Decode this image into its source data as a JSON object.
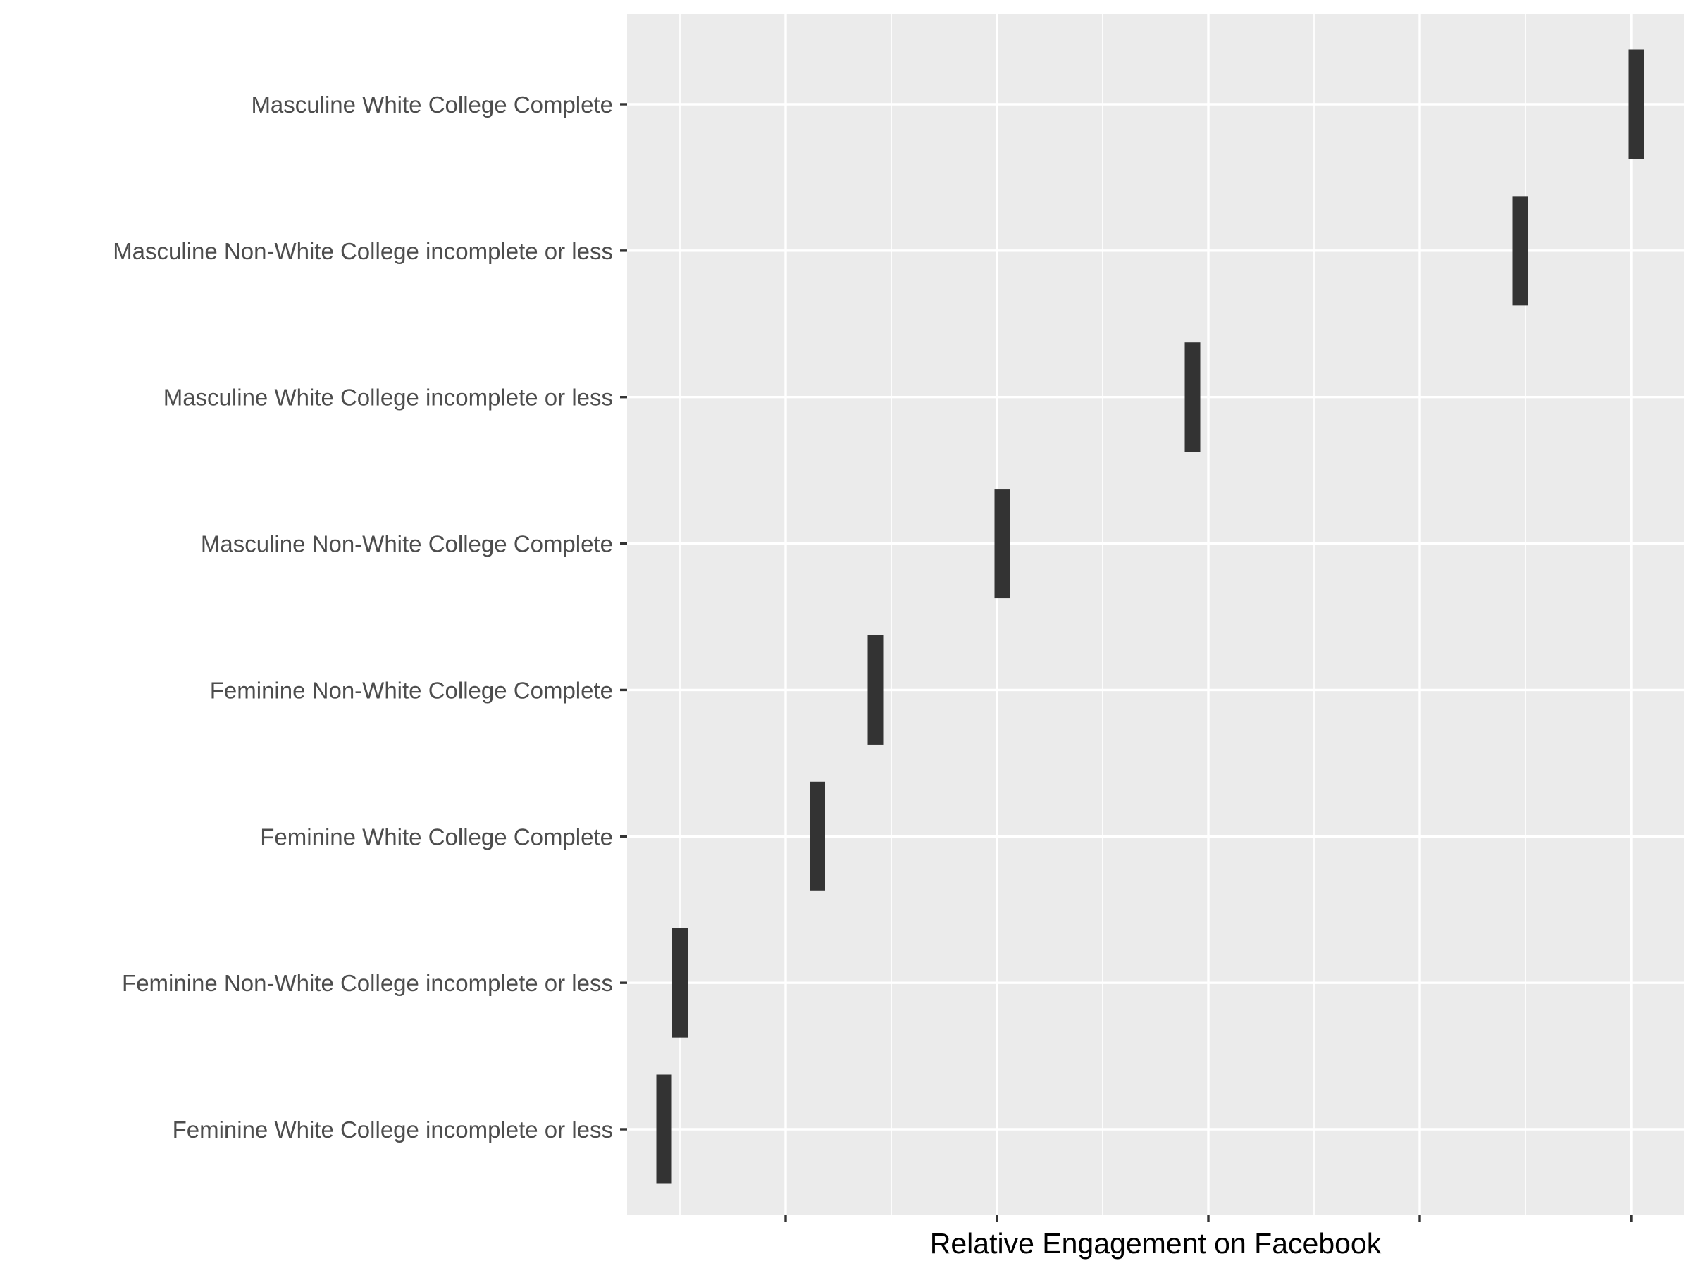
{
  "chart_data": {
    "type": "bar",
    "orientation": "horizontal",
    "xlabel": "Relative Engagement on Facebook",
    "ylabel": "",
    "x_tick_labels_shown": false,
    "xlim": [
      0,
      10
    ],
    "x_major_ticks": [
      1.5,
      3.5,
      5.5,
      7.5,
      9.5
    ],
    "x_minor_grid": [
      0.5,
      2.5,
      4.5,
      6.5,
      8.5
    ],
    "grid": true,
    "categories": [
      "Masculine White College Complete",
      "Masculine Non-White College incomplete or less",
      "Masculine White College incomplete or less",
      "Masculine Non-White College Complete",
      "Feminine Non-White College Complete",
      "Feminine White College Complete",
      "Feminine Non-White College incomplete or less",
      "Feminine White College incomplete or less"
    ],
    "values": [
      9.55,
      8.45,
      5.35,
      3.55,
      2.35,
      1.8,
      0.5,
      0.35
    ],
    "mark_color": "#333333",
    "panel_color": "#ebebeb"
  }
}
